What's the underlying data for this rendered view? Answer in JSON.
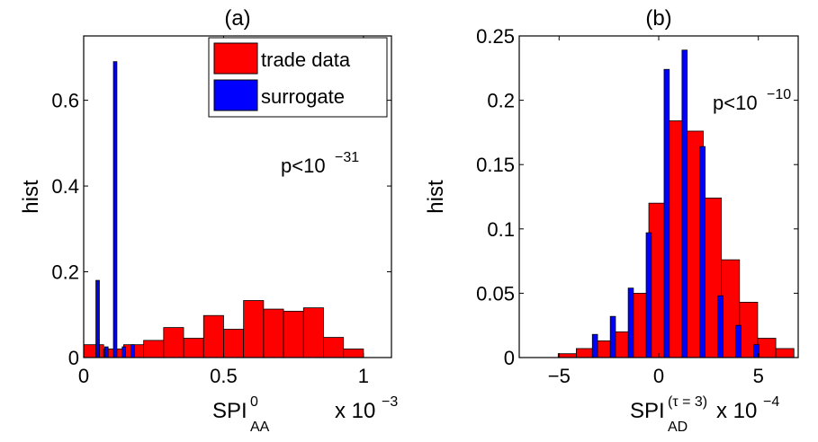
{
  "chart_data": [
    {
      "type": "bar",
      "title": "(a)",
      "ylabel": "hist",
      "xlabel": {
        "base": "SPI",
        "sup": "0",
        "sub": "AA"
      },
      "xscale_label": {
        "base": "x 10",
        "exp": "−3"
      },
      "annotation": {
        "base": "p<10",
        "exp": "−31"
      },
      "xlim": [
        0,
        1.1
      ],
      "ylim": [
        0,
        0.75
      ],
      "xticks": [
        0,
        0.5,
        1
      ],
      "xtick_labels": [
        "0",
        "0.5",
        "1"
      ],
      "yticks": [
        0,
        0.2,
        0.4,
        0.6
      ],
      "ytick_labels": [
        "0",
        "0.2",
        "0.4",
        "0.6"
      ],
      "grid": false,
      "legend": {
        "placement": "top-right",
        "entries": [
          "trade data",
          "surrogate"
        ]
      },
      "series": [
        {
          "name": "trade data",
          "color": "#ff0000",
          "bin_width": 0.0714,
          "x": [
            0.0357,
            0.1071,
            0.1786,
            0.25,
            0.3214,
            0.3929,
            0.4643,
            0.5357,
            0.6071,
            0.6786,
            0.75,
            0.8214,
            0.8929,
            0.9643
          ],
          "values": [
            0.03,
            0.02,
            0.03,
            0.04,
            0.07,
            0.045,
            0.098,
            0.066,
            0.133,
            0.113,
            0.108,
            0.116,
            0.047,
            0.02
          ]
        },
        {
          "name": "surrogate",
          "color": "#0000ff",
          "bin_width": 0.0124,
          "x": [
            0.0186,
            0.0499,
            0.0812,
            0.1125,
            0.1438,
            0.1751,
            0.2064
          ],
          "values": [
            0.0,
            0.18,
            0.025,
            0.69,
            0.025,
            0.03,
            0.0
          ]
        }
      ]
    },
    {
      "type": "bar",
      "title": "(b)",
      "ylabel": "hist",
      "xlabel": {
        "base": "SPI",
        "sup": "(τ = 3)",
        "sub": "AD"
      },
      "xscale_label": {
        "base": "x 10",
        "exp": "−4"
      },
      "annotation": {
        "base": "p<10",
        "exp": "−10"
      },
      "xlim": [
        -7,
        7
      ],
      "ylim": [
        0,
        0.25
      ],
      "xticks": [
        -5,
        0,
        5
      ],
      "xtick_labels": [
        "−5",
        "0",
        "5"
      ],
      "yticks": [
        0,
        0.05,
        0.1,
        0.15,
        0.2,
        0.25
      ],
      "ytick_labels": [
        "0",
        "0.05",
        "0.1",
        "0.15",
        "0.2",
        "0.25"
      ],
      "grid": false,
      "series": [
        {
          "name": "trade data",
          "color": "#ff0000",
          "bin_width": 0.91,
          "x": [
            -5.5,
            -4.59,
            -3.68,
            -2.77,
            -1.86,
            -0.95,
            -0.04,
            0.87,
            1.78,
            2.69,
            3.6,
            4.51,
            5.42,
            6.33
          ],
          "values": [
            0.0,
            0.003,
            0.007,
            0.013,
            0.02,
            0.05,
            0.12,
            0.184,
            0.176,
            0.124,
            0.076,
            0.043,
            0.015,
            0.007
          ]
        },
        {
          "name": "surrogate",
          "color": "#0000ff",
          "bin_width": 0.26,
          "x": [
            -3.2,
            -2.3,
            -1.4,
            -0.5,
            0.4,
            1.3,
            2.2,
            3.1,
            4.0,
            4.9
          ],
          "values": [
            0.018,
            0.032,
            0.054,
            0.097,
            0.224,
            0.239,
            0.164,
            0.048,
            0.025,
            0.01
          ]
        }
      ]
    }
  ]
}
